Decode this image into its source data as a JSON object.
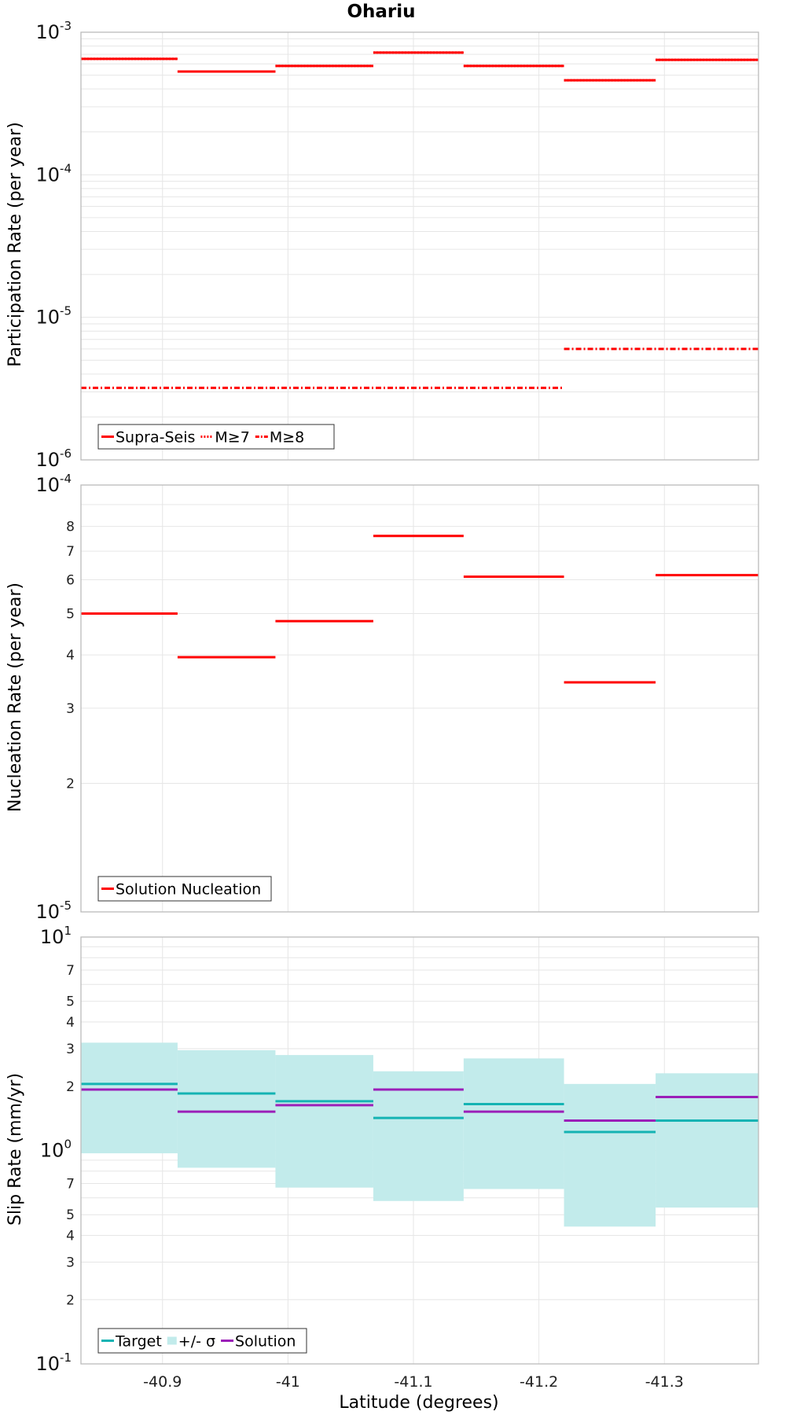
{
  "colors": {
    "red": "#ff0000",
    "target": "#14b3b3",
    "band": "#c2ebeb",
    "solution": "#9b1fb8",
    "grid": "#e6e6e6",
    "frame": "#bbbbbb"
  },
  "chart_data": [
    {
      "type": "line",
      "title": "Ohariu",
      "ylabel": "Participation Rate (per year)",
      "yscale": "log",
      "ylim": [
        1e-06,
        0.001
      ],
      "xlim": [
        -40.835,
        -41.375
      ],
      "y_ticks": [
        {
          "mant": "10",
          "exp": "-6",
          "v": 1e-06
        },
        {
          "mant": "10",
          "exp": "-5",
          "v": 1e-05
        },
        {
          "mant": "10",
          "exp": "-4",
          "v": 0.0001
        },
        {
          "mant": "10",
          "exp": "-3",
          "v": 0.001
        }
      ],
      "legend": {
        "position": "bottom-left",
        "entries": [
          {
            "label": "Supra-Seis",
            "style": "solid",
            "color": "#ff0000"
          },
          {
            "label": "M≥7",
            "style": "dotted",
            "color": "#ff0000"
          },
          {
            "label": "M≥8",
            "style": "dashdot",
            "color": "#ff0000"
          }
        ]
      },
      "series": [
        {
          "name": "Supra-Seis",
          "style": "solid",
          "color": "#ff0000",
          "segments": [
            {
              "x0": -40.835,
              "x1": -40.912,
              "y": 0.00065
            },
            {
              "x0": -40.912,
              "x1": -40.99,
              "y": 0.00053
            },
            {
              "x0": -40.99,
              "x1": -41.068,
              "y": 0.00058
            },
            {
              "x0": -41.068,
              "x1": -41.14,
              "y": 0.00072
            },
            {
              "x0": -41.14,
              "x1": -41.22,
              "y": 0.00058
            },
            {
              "x0": -41.22,
              "x1": -41.293,
              "y": 0.00046
            },
            {
              "x0": -41.293,
              "x1": -41.375,
              "y": 0.00064
            }
          ]
        },
        {
          "name": "M≥7",
          "style": "dotted",
          "color": "#ff0000",
          "segments": [
            {
              "x0": -40.835,
              "x1": -40.912,
              "y": 0.00065
            },
            {
              "x0": -40.912,
              "x1": -40.99,
              "y": 0.00053
            },
            {
              "x0": -40.99,
              "x1": -41.068,
              "y": 0.00058
            },
            {
              "x0": -41.068,
              "x1": -41.14,
              "y": 0.00072
            },
            {
              "x0": -41.14,
              "x1": -41.22,
              "y": 0.00058
            },
            {
              "x0": -41.22,
              "x1": -41.293,
              "y": 0.00046
            },
            {
              "x0": -41.293,
              "x1": -41.375,
              "y": 0.00064
            }
          ]
        },
        {
          "name": "M≥8",
          "style": "dashdot",
          "color": "#ff0000",
          "segments": [
            {
              "x0": -40.835,
              "x1": -41.22,
              "y": 3.2e-06
            },
            {
              "x0": -41.22,
              "x1": -41.375,
              "y": 6e-06
            }
          ]
        }
      ]
    },
    {
      "type": "line",
      "ylabel": "Nucleation Rate (per year)",
      "yscale": "log",
      "ylim": [
        1e-05,
        0.0001
      ],
      "xlim": [
        -40.835,
        -41.375
      ],
      "y_ticks": [
        {
          "mant": "10",
          "exp": "-5",
          "v": 1e-05
        },
        {
          "label": "2",
          "v": 2e-05
        },
        {
          "label": "3",
          "v": 3e-05
        },
        {
          "label": "4",
          "v": 4e-05
        },
        {
          "label": "5",
          "v": 5e-05
        },
        {
          "label": "6",
          "v": 6e-05
        },
        {
          "label": "7",
          "v": 7e-05
        },
        {
          "label": "8",
          "v": 8e-05
        },
        {
          "mant": "10",
          "exp": "-4",
          "v": 0.0001
        }
      ],
      "legend": {
        "position": "bottom-left",
        "entries": [
          {
            "label": "Solution Nucleation",
            "style": "solid",
            "color": "#ff0000"
          }
        ]
      },
      "series": [
        {
          "name": "Solution Nucleation",
          "style": "solid",
          "color": "#ff0000",
          "segments": [
            {
              "x0": -40.835,
              "x1": -40.912,
              "y": 5e-05
            },
            {
              "x0": -40.912,
              "x1": -40.99,
              "y": 3.95e-05
            },
            {
              "x0": -40.99,
              "x1": -41.068,
              "y": 4.8e-05
            },
            {
              "x0": -41.068,
              "x1": -41.14,
              "y": 7.6e-05
            },
            {
              "x0": -41.14,
              "x1": -41.22,
              "y": 6.1e-05
            },
            {
              "x0": -41.22,
              "x1": -41.293,
              "y": 3.45e-05
            },
            {
              "x0": -41.293,
              "x1": -41.375,
              "y": 6.15e-05
            }
          ]
        }
      ]
    },
    {
      "type": "line",
      "ylabel": "Slip Rate (mm/yr)",
      "xlabel": "Latitude (degrees)",
      "yscale": "log",
      "ylim": [
        0.1,
        10
      ],
      "xlim": [
        -40.835,
        -41.375
      ],
      "x_ticks": [
        {
          "label": "-40.9",
          "v": -40.9
        },
        {
          "label": "-41",
          "v": -41.0
        },
        {
          "label": "-41.1",
          "v": -41.1
        },
        {
          "label": "-41.2",
          "v": -41.2
        },
        {
          "label": "-41.3",
          "v": -41.3
        }
      ],
      "y_ticks": [
        {
          "mant": "10",
          "exp": "-1",
          "v": 0.1
        },
        {
          "label": "2",
          "v": 0.2
        },
        {
          "label": "3",
          "v": 0.3
        },
        {
          "label": "4",
          "v": 0.4
        },
        {
          "label": "5",
          "v": 0.5
        },
        {
          "label": "7",
          "v": 0.7
        },
        {
          "mant": "10",
          "exp": "0",
          "v": 1
        },
        {
          "label": "2",
          "v": 2
        },
        {
          "label": "3",
          "v": 3
        },
        {
          "label": "4",
          "v": 4
        },
        {
          "label": "5",
          "v": 5
        },
        {
          "label": "7",
          "v": 7
        },
        {
          "mant": "10",
          "exp": "1",
          "v": 10
        }
      ],
      "legend": {
        "position": "bottom-left",
        "entries": [
          {
            "label": "Target",
            "style": "solid",
            "color": "#14b3b3"
          },
          {
            "label": "+/- σ",
            "style": "band",
            "color": "#c2ebeb"
          },
          {
            "label": "Solution",
            "style": "solid",
            "color": "#9b1fb8"
          }
        ]
      },
      "bands": [
        {
          "name": "+/- σ",
          "color": "#c2ebeb",
          "segments": [
            {
              "x0": -40.835,
              "x1": -40.912,
              "low": 0.97,
              "high": 3.2
            },
            {
              "x0": -40.912,
              "x1": -40.99,
              "low": 0.83,
              "high": 2.95
            },
            {
              "x0": -40.99,
              "x1": -41.068,
              "low": 0.67,
              "high": 2.8
            },
            {
              "x0": -41.068,
              "x1": -41.14,
              "low": 0.58,
              "high": 2.35
            },
            {
              "x0": -41.14,
              "x1": -41.22,
              "low": 0.66,
              "high": 2.7
            },
            {
              "x0": -41.22,
              "x1": -41.293,
              "low": 0.44,
              "high": 2.05
            },
            {
              "x0": -41.293,
              "x1": -41.375,
              "low": 0.54,
              "high": 2.3
            }
          ]
        }
      ],
      "series": [
        {
          "name": "Target",
          "style": "solid",
          "color": "#14b3b3",
          "segments": [
            {
              "x0": -40.835,
              "x1": -40.912,
              "y": 2.05
            },
            {
              "x0": -40.912,
              "x1": -40.99,
              "y": 1.85
            },
            {
              "x0": -40.99,
              "x1": -41.068,
              "y": 1.7
            },
            {
              "x0": -41.068,
              "x1": -41.14,
              "y": 1.42
            },
            {
              "x0": -41.14,
              "x1": -41.22,
              "y": 1.65
            },
            {
              "x0": -41.22,
              "x1": -41.293,
              "y": 1.22
            },
            {
              "x0": -41.293,
              "x1": -41.375,
              "y": 1.38
            }
          ]
        },
        {
          "name": "Solution",
          "style": "solid",
          "color": "#9b1fb8",
          "segments": [
            {
              "x0": -40.835,
              "x1": -40.912,
              "y": 1.93
            },
            {
              "x0": -40.912,
              "x1": -40.99,
              "y": 1.52
            },
            {
              "x0": -40.99,
              "x1": -41.068,
              "y": 1.63
            },
            {
              "x0": -41.068,
              "x1": -41.14,
              "y": 1.93
            },
            {
              "x0": -41.14,
              "x1": -41.22,
              "y": 1.52
            },
            {
              "x0": -41.22,
              "x1": -41.293,
              "y": 1.38
            },
            {
              "x0": -41.293,
              "x1": -41.375,
              "y": 1.78
            }
          ]
        }
      ]
    }
  ]
}
